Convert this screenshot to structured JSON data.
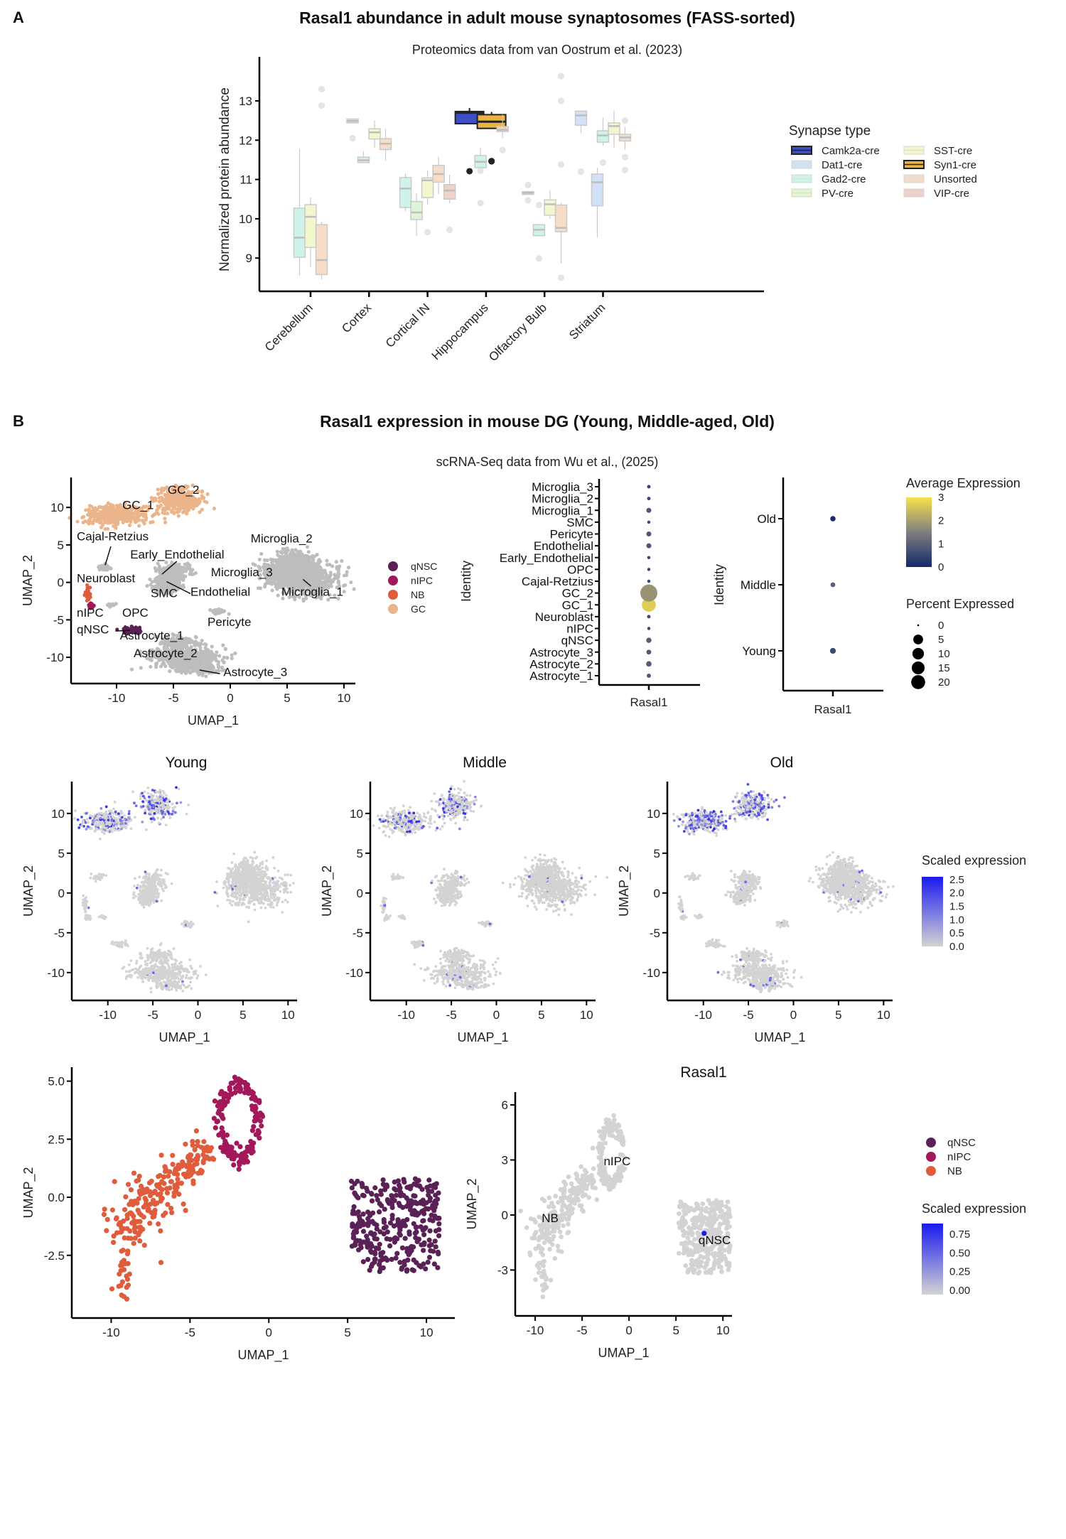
{
  "panel_a": {
    "letter": "A",
    "title": "Rasal1 abundance in adult mouse synaptosomes (FASS-sorted)",
    "subtitle": "Proteomics data from van Oostrum et al. (2023)"
  },
  "panel_b": {
    "letter": "B",
    "title": "Rasal1 expression in mouse DG (Young, Middle-aged, Old)",
    "subtitle": "scRNA-Seq data from Wu et al., (2025)"
  },
  "chart_data": [
    {
      "id": "boxplot",
      "type": "box",
      "title": "Rasal1 abundance in adult mouse synaptosomes (FASS-sorted)",
      "subtitle": "Proteomics data from van Oostrum et al. (2023)",
      "xlabel": "",
      "ylabel": "Normalized protein abundance",
      "ylim": [
        8.3,
        13.9
      ],
      "yticks": [
        9,
        10,
        11,
        12,
        13
      ],
      "categories": [
        "Cerebellum",
        "Cortex",
        "Cortical IN",
        "Hippocampus",
        "Olfactory Bulb",
        "Striatum"
      ],
      "legend_title": "Synapse type",
      "legend_position": "right",
      "legend": [
        {
          "name": "Camk2a-cre",
          "color": "#3d4fc4",
          "highlight": true
        },
        {
          "name": "Dat1-cre",
          "color": "#cfe0f7",
          "highlight": false
        },
        {
          "name": "Gad2-cre",
          "color": "#cdf3ea",
          "highlight": false
        },
        {
          "name": "PV-cre",
          "color": "#dff5d4",
          "highlight": false
        },
        {
          "name": "SST-cre",
          "color": "#f4f6cc",
          "highlight": false
        },
        {
          "name": "Syn1-cre",
          "color": "#eab23f",
          "highlight": true
        },
        {
          "name": "Unsorted",
          "color": "#f6dcc6",
          "highlight": false
        },
        {
          "name": "VIP-cre",
          "color": "#efd0c8",
          "highlight": false
        }
      ],
      "boxes": [
        {
          "category": "Cerebellum",
          "type": "Gad2-cre",
          "min": 8.55,
          "q1": 9.02,
          "median": 9.52,
          "q3": 10.27,
          "max": 11.78,
          "outliers": []
        },
        {
          "category": "Cerebellum",
          "type": "SST-cre",
          "min": 8.77,
          "q1": 9.27,
          "median": 10.05,
          "q3": 10.36,
          "max": 10.54,
          "outliers": []
        },
        {
          "category": "Cerebellum",
          "type": "Unsorted",
          "min": 8.45,
          "q1": 8.58,
          "median": 8.95,
          "q3": 9.85,
          "max": 9.92,
          "outliers": [
            12.88,
            13.3
          ]
        },
        {
          "category": "Cortex",
          "type": "Dat1-cre",
          "min": 12.44,
          "q1": 12.44,
          "median": 12.49,
          "q3": 12.54,
          "max": 12.54,
          "outliers": [
            12.05
          ]
        },
        {
          "category": "Cortex",
          "type": "Gad2-cre",
          "min": 11.43,
          "q1": 11.43,
          "median": 11.49,
          "q3": 11.57,
          "max": 11.72,
          "outliers": []
        },
        {
          "category": "Cortex",
          "type": "SST-cre",
          "min": 11.8,
          "q1": 12.03,
          "median": 12.2,
          "q3": 12.29,
          "max": 12.5,
          "outliers": []
        },
        {
          "category": "Cortex",
          "type": "Unsorted",
          "min": 11.48,
          "q1": 11.76,
          "median": 11.91,
          "q3": 12.04,
          "max": 12.29,
          "outliers": []
        },
        {
          "category": "Cortical IN",
          "type": "Gad2-cre",
          "min": 10.2,
          "q1": 10.29,
          "median": 10.77,
          "q3": 11.05,
          "max": 11.15,
          "outliers": []
        },
        {
          "category": "Cortical IN",
          "type": "PV-cre",
          "min": 9.56,
          "q1": 9.98,
          "median": 10.16,
          "q3": 10.44,
          "max": 10.66,
          "outliers": []
        },
        {
          "category": "Cortical IN",
          "type": "SST-cre",
          "min": 10.37,
          "q1": 10.54,
          "median": 10.98,
          "q3": 11.04,
          "max": 11.23,
          "outliers": [
            9.66
          ]
        },
        {
          "category": "Cortical IN",
          "type": "Unsorted",
          "min": 10.63,
          "q1": 10.93,
          "median": 11.14,
          "q3": 11.36,
          "max": 11.58,
          "outliers": []
        },
        {
          "category": "Cortical IN",
          "type": "VIP-cre",
          "min": 10.4,
          "q1": 10.5,
          "median": 10.72,
          "q3": 10.87,
          "max": 11.12,
          "outliers": [
            9.72
          ]
        },
        {
          "category": "Hippocampus",
          "type": "Camk2a-cre",
          "min": 12.42,
          "q1": 12.42,
          "median": 12.7,
          "q3": 12.73,
          "max": 12.82,
          "outliers": [
            11.21
          ]
        },
        {
          "category": "Hippocampus",
          "type": "Gad2-cre",
          "min": 11.22,
          "q1": 11.3,
          "median": 11.45,
          "q3": 11.61,
          "max": 11.8,
          "outliers": [
            10.4,
            11.22
          ]
        },
        {
          "category": "Hippocampus",
          "type": "Syn1-cre",
          "min": 12.3,
          "q1": 12.3,
          "median": 12.47,
          "q3": 12.65,
          "max": 12.72,
          "outliers": [
            11.46,
            11.47
          ]
        },
        {
          "category": "Hippocampus",
          "type": "Unsorted",
          "min": 12.05,
          "q1": 12.22,
          "median": 12.26,
          "q3": 12.35,
          "max": 12.65,
          "outliers": [
            11.75
          ]
        },
        {
          "category": "Olfactory Bulb",
          "type": "Dat1-cre",
          "min": 10.62,
          "q1": 10.62,
          "median": 10.66,
          "q3": 10.69,
          "max": 10.69,
          "outliers": [
            10.86,
            10.47
          ]
        },
        {
          "category": "Olfactory Bulb",
          "type": "Gad2-cre",
          "min": 9.57,
          "q1": 9.57,
          "median": 9.72,
          "q3": 9.85,
          "max": 9.85,
          "outliers": [
            10.35,
            8.99
          ]
        },
        {
          "category": "Olfactory Bulb",
          "type": "SST-cre",
          "min": 10.0,
          "q1": 10.09,
          "median": 10.37,
          "q3": 10.48,
          "max": 10.73,
          "outliers": []
        },
        {
          "category": "Olfactory Bulb",
          "type": "Unsorted",
          "min": 8.86,
          "q1": 9.67,
          "median": 9.77,
          "q3": 10.35,
          "max": 10.41,
          "outliers": [
            11.38,
            13.0,
            13.63,
            8.5
          ]
        },
        {
          "category": "Striatum",
          "type": "Dat1-cre",
          "min": 12.18,
          "q1": 12.38,
          "median": 12.63,
          "q3": 12.74,
          "max": 12.74,
          "outliers": [
            11.2
          ]
        },
        {
          "category": "Striatum",
          "type": "Dat1-cre",
          "min": 9.52,
          "q1": 10.33,
          "median": 10.93,
          "q3": 11.14,
          "max": 11.3,
          "outliers": []
        },
        {
          "category": "Striatum",
          "type": "Gad2-cre",
          "min": 11.86,
          "q1": 11.95,
          "median": 12.12,
          "q3": 12.24,
          "max": 12.58,
          "outliers": [
            11.43
          ]
        },
        {
          "category": "Striatum",
          "type": "SST-cre",
          "min": 11.8,
          "q1": 12.15,
          "median": 12.36,
          "q3": 12.44,
          "max": 12.75,
          "outliers": []
        },
        {
          "category": "Striatum",
          "type": "Unsorted",
          "min": 11.76,
          "q1": 11.98,
          "median": 12.07,
          "q3": 12.15,
          "max": 12.34,
          "outliers": [
            12.5,
            11.57,
            11.24
          ]
        }
      ]
    },
    {
      "id": "umap_all",
      "type": "scatter",
      "xlabel": "UMAP_1",
      "ylabel": "UMAP_2",
      "xticks": [
        -10,
        -5,
        0,
        5,
        10
      ],
      "yticks": [
        -10,
        -5,
        0,
        5,
        10
      ],
      "xlim": [
        -14,
        11
      ],
      "ylim": [
        -13.5,
        14
      ],
      "legend_position": "right",
      "legend": [
        {
          "name": "qNSC",
          "color": "#5a2157"
        },
        {
          "name": "nIPC",
          "color": "#a3185b"
        },
        {
          "name": "NB",
          "color": "#df5c3d"
        },
        {
          "name": "GC",
          "color": "#ecb48a"
        }
      ],
      "other_color": "#bdbdbd",
      "clusters": [
        {
          "name": "GC_1",
          "group": "GC",
          "center": [
            -10,
            9
          ],
          "spread": [
            2.5,
            1.2
          ],
          "label_at": [
            -9.5,
            9.8
          ]
        },
        {
          "name": "GC_2",
          "group": "GC",
          "center": [
            -4.5,
            11
          ],
          "spread": [
            1.8,
            1.5
          ],
          "label_at": [
            -5.5,
            11.8
          ]
        },
        {
          "name": "Cajal-Retzius",
          "group": "other",
          "center": [
            -11,
            2
          ],
          "spread": [
            0.6,
            0.3
          ],
          "label_at": [
            -13.5,
            5.6
          ]
        },
        {
          "name": "Neuroblast",
          "group": "NB",
          "center": [
            -12.5,
            -1.5
          ],
          "spread": [
            0.2,
            0.8
          ],
          "label_at": [
            -13.5,
            0
          ]
        },
        {
          "name": "nIPC",
          "group": "nIPC",
          "center": [
            -12.2,
            -3.1
          ],
          "spread": [
            0.3,
            0.3
          ],
          "label_at": [
            -13.5,
            -4.6
          ]
        },
        {
          "name": "qNSC",
          "group": "qNSC",
          "center": [
            -8.7,
            -6.4
          ],
          "spread": [
            0.8,
            0.4
          ],
          "label_at": [
            -13.5,
            -6.8
          ]
        },
        {
          "name": "OPC",
          "group": "other",
          "center": [
            -10.5,
            -3.0
          ],
          "spread": [
            0.3,
            0.2
          ],
          "label_at": [
            -9.5,
            -4.6
          ]
        },
        {
          "name": "Astrocyte_1",
          "group": "other",
          "center": [
            -4.5,
            -8
          ],
          "spread": [
            1.5,
            0.8
          ],
          "label_at": [
            -9.7,
            -7.6
          ]
        },
        {
          "name": "Astrocyte_2",
          "group": "other",
          "center": [
            -4,
            -10
          ],
          "spread": [
            3,
            1.2
          ],
          "label_at": [
            -8.5,
            -10.0
          ]
        },
        {
          "name": "Astrocyte_3",
          "group": "other",
          "center": [
            -3,
            -11.5
          ],
          "spread": [
            1.8,
            0.6
          ],
          "label_at": [
            -0.6,
            -12.5
          ]
        },
        {
          "name": "Early_Endothelial",
          "group": "other",
          "center": [
            -5,
            1.5
          ],
          "spread": [
            1.3,
            1.0
          ],
          "label_at": [
            -8.8,
            3.2
          ]
        },
        {
          "name": "Endothelial",
          "group": "other",
          "center": [
            -5.5,
            0
          ],
          "spread": [
            1.2,
            1.0
          ],
          "label_at": [
            -3.5,
            -1.8
          ]
        },
        {
          "name": "SMC",
          "group": "other",
          "center": [
            -5.8,
            -0.8
          ],
          "spread": [
            0.8,
            0.6
          ],
          "label_at": [
            -7,
            -2
          ]
        },
        {
          "name": "Pericyte",
          "group": "other",
          "center": [
            -1.2,
            -3.9
          ],
          "spread": [
            0.6,
            0.3
          ],
          "label_at": [
            -2.0,
            -5.8
          ]
        },
        {
          "name": "Microglia_1",
          "group": "other",
          "center": [
            6.5,
            0.5
          ],
          "spread": [
            2.8,
            2.0
          ],
          "label_at": [
            4.5,
            -1.8
          ]
        },
        {
          "name": "Microglia_2",
          "group": "other",
          "center": [
            5.5,
            3
          ],
          "spread": [
            1.5,
            1.2
          ],
          "label_at": [
            1.8,
            5.3
          ]
        },
        {
          "name": "Microglia_3",
          "group": "other",
          "center": [
            5,
            1.5
          ],
          "spread": [
            2,
            1.3
          ],
          "label_at": [
            -1.7,
            0.8
          ]
        }
      ]
    },
    {
      "id": "dotplot_identity",
      "type": "dot",
      "xlabel": "",
      "ylabel": "Identity",
      "x_categories": [
        "Rasal1"
      ],
      "y_categories": [
        "Astrocyte_1",
        "Astrocyte_2",
        "Astrocyte_3",
        "qNSC",
        "nIPC",
        "Neuroblast",
        "GC_1",
        "GC_2",
        "Cajal-Retzius",
        "OPC",
        "Early_Endothelial",
        "Endothelial",
        "Pericyte",
        "SMC",
        "Microglia_1",
        "Microglia_2",
        "Microglia_3"
      ],
      "avg_expression": [
        0.8,
        0.9,
        0.8,
        0.9,
        0.5,
        0.6,
        2.7,
        1.8,
        0.5,
        0.5,
        0.5,
        0.8,
        0.8,
        0.5,
        0.8,
        0.5,
        0.5
      ],
      "pct_expressed": [
        0.6,
        1.3,
        0.9,
        1.2,
        0.2,
        0.3,
        14,
        22,
        0.2,
        0.2,
        0.2,
        1.0,
        1.0,
        0.2,
        1.0,
        0.3,
        0.3
      ]
    },
    {
      "id": "dotplot_age",
      "type": "dot",
      "xlabel": "",
      "ylabel": "Identity",
      "x_categories": [
        "Rasal1"
      ],
      "y_categories": [
        "Young",
        "Middle",
        "Old"
      ],
      "avg_expression": [
        0.55,
        1.0,
        0.05
      ],
      "pct_expressed": [
        5,
        3,
        4
      ],
      "color_legend": {
        "title": "Average Expression",
        "ticks": [
          0,
          1,
          2,
          3
        ],
        "low": "#14296b",
        "mid": "#7f7f7f",
        "high": "#f6e24a"
      },
      "size_legend": {
        "title": "Percent Expressed",
        "ticks": [
          0,
          5,
          10,
          15,
          20
        ]
      }
    },
    {
      "id": "feature_umaps",
      "type": "scatter",
      "panels": [
        "Young",
        "Middle",
        "Old"
      ],
      "xlabel": "UMAP_1",
      "ylabel": "UMAP_2",
      "xticks": [
        -10,
        -5,
        0,
        5,
        10
      ],
      "yticks": [
        -10,
        -5,
        0,
        5,
        10
      ],
      "color_legend": {
        "title": "Scaled expression",
        "ticks": [
          0.0,
          0.5,
          1.0,
          1.5,
          2.0,
          2.5
        ],
        "low": "#d3d3d3",
        "high": "#1a1af0"
      },
      "expression_density": {
        "Young": 0.35,
        "Middle": 0.22,
        "Old": 0.5
      }
    },
    {
      "id": "neurogenic_umap",
      "type": "scatter",
      "xlabel": "UMAP_1",
      "ylabel": "UMAP_2",
      "xticks": [
        -10,
        -5,
        0,
        5,
        10
      ],
      "yticks": [
        -2.5,
        0.0,
        2.5,
        5.0
      ],
      "ytick_labels": [
        "-2.5",
        "0.0",
        "2.5",
        "5.0"
      ],
      "legend": [
        {
          "name": "qNSC",
          "color": "#5a2157"
        },
        {
          "name": "nIPC",
          "color": "#a3185b"
        },
        {
          "name": "NB",
          "color": "#df5c3d"
        }
      ]
    },
    {
      "id": "neurogenic_rasal1",
      "type": "scatter",
      "title": "Rasal1",
      "xlabel": "UMAP_1",
      "ylabel": "UMAP_2",
      "xticks": [
        -10,
        -5,
        0,
        5,
        10
      ],
      "yticks": [
        -3,
        0,
        3,
        6
      ],
      "cluster_labels": [
        "NB",
        "nIPC",
        "qNSC"
      ],
      "color_legend": {
        "title": "Scaled expression",
        "ticks": [
          "0.00",
          "0.25",
          "0.50",
          "0.75"
        ],
        "low": "#d3d3d3",
        "high": "#1a1af0"
      }
    }
  ]
}
